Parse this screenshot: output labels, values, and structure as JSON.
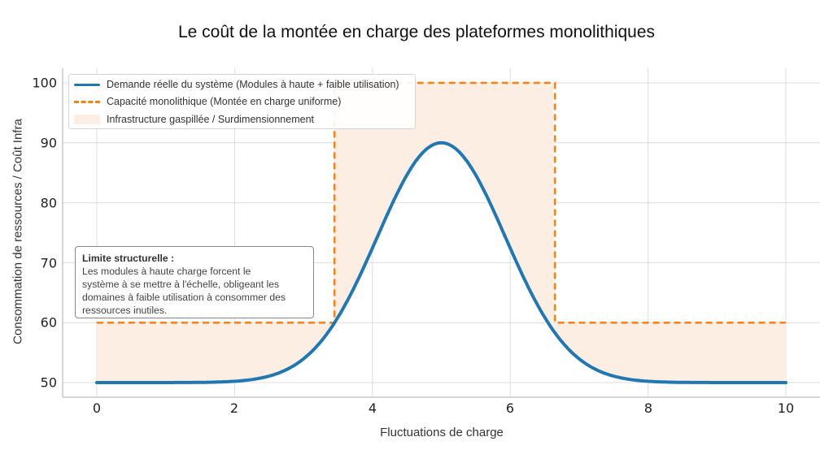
{
  "title": "Le coût de la montée en charge des plateformes monolithiques",
  "chart_data": {
    "type": "line",
    "title": "Le coût de la montée en charge des plateformes monolithiques",
    "xlabel": "Fluctuations de charge",
    "ylabel": "Consommation de ressources / Coût Infra",
    "xlim": [
      -0.5,
      10.5
    ],
    "ylim": [
      47.5,
      102
    ],
    "grid": true,
    "legend_position": "upper left",
    "x_ticks": [
      "0",
      "2",
      "4",
      "6",
      "8",
      "10"
    ],
    "y_ticks": [
      "50",
      "60",
      "70",
      "80",
      "90",
      "100"
    ],
    "series": [
      {
        "name": "Demande réelle du système (Modules à haute + faible utilisation)",
        "style": "solid",
        "color": "#1f77b4",
        "x": [
          0,
          1,
          2,
          2.5,
          3,
          3.45,
          4,
          4.5,
          5,
          5.5,
          6,
          6.55,
          7,
          7.5,
          8,
          9,
          10
        ],
        "values": [
          50.0,
          50.0,
          50.3,
          51.1,
          53.2,
          60.0,
          72.3,
          83.1,
          90.0,
          83.1,
          72.3,
          60.0,
          53.2,
          51.1,
          50.3,
          50.0,
          50.0
        ]
      },
      {
        "name": "Capacité monolithique (Montée en charge uniforme)",
        "style": "dashed",
        "color": "#ff7f0e",
        "x": [
          0,
          3.45,
          3.45,
          6.65,
          6.65,
          10
        ],
        "values": [
          60,
          60,
          100,
          100,
          60,
          60
        ]
      },
      {
        "name": "Infrastructure gaspillée / Surdimensionnement",
        "style": "fill_between",
        "color": "#fdeee3",
        "description": "Area between capacité monolithique and demande réelle"
      }
    ],
    "annotations": [
      {
        "title": "Limite structurelle :",
        "text": "Les modules à haute charge forcent le système à se mettre à l'échelle, obligeant les domaines à faible utilisation à consommer des ressources inutiles."
      }
    ]
  },
  "axes": {
    "xlabel": "Fluctuations de charge",
    "ylabel": "Consommation de ressources / Coût Infra",
    "x_ticks": [
      "0",
      "2",
      "4",
      "6",
      "8",
      "10"
    ],
    "y_ticks": [
      "50",
      "60",
      "70",
      "80",
      "90",
      "100"
    ]
  },
  "legend": {
    "items": [
      {
        "label": "Demande réelle du système (Modules à haute + faible utilisation)",
        "color": "#1f77b4"
      },
      {
        "label": "Capacité monolithique (Montée en charge uniforme)",
        "color": "#ff7f0e"
      },
      {
        "label": "Infrastructure gaspillée / Surdimensionnement",
        "color": "#fdeee3"
      }
    ]
  },
  "annotation": {
    "title": "Limite structurelle :",
    "lines": [
      "Les modules à haute charge forcent le",
      "système à se mettre à l'échelle, obligeant les",
      "domaines à faible utilisation à consommer des",
      "ressources inutiles."
    ]
  }
}
